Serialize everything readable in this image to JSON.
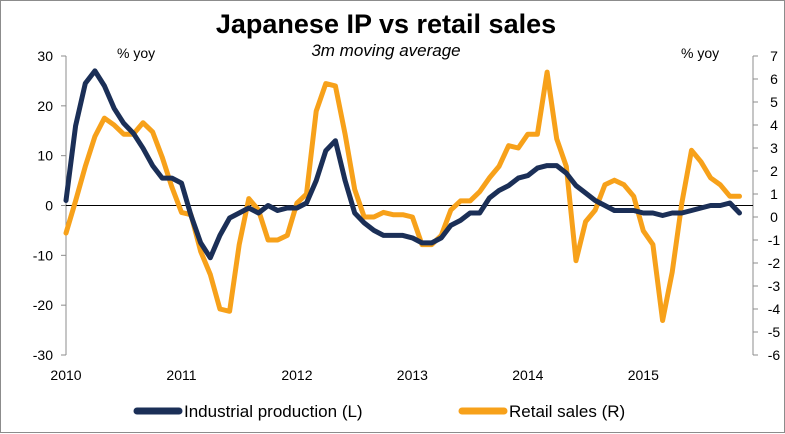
{
  "chart_data": {
    "type": "line",
    "title": "Japanese IP vs retail sales",
    "subtitle": "3m moving average",
    "y_left_unit": "% yoy",
    "y_right_unit": "% yoy",
    "y_left_lim": [
      -30,
      30
    ],
    "y_right_lim": [
      -6,
      7
    ],
    "y_left_ticks": [
      "30",
      "20",
      "10",
      "0",
      "-10",
      "-20",
      "-30"
    ],
    "y_right_ticks": [
      "7",
      "6",
      "5",
      "4",
      "3",
      "2",
      "1",
      "0",
      "-1",
      "-2",
      "-3",
      "-4",
      "-5",
      "-6"
    ],
    "x_ticks": [
      "2010",
      "2011",
      "2012",
      "2013",
      "2014",
      "2015"
    ],
    "x_lim": [
      2010.0,
      2015.95
    ],
    "grid": false,
    "legend": "bottom",
    "colors": {
      "ip": "#1b2f57",
      "retail": "#f7a11a"
    },
    "series": [
      {
        "name": "Industrial production (L)",
        "axis": "left",
        "color": "#1b2f57",
        "x": [
          2010.0,
          2010.083,
          2010.167,
          2010.25,
          2010.333,
          2010.417,
          2010.5,
          2010.583,
          2010.667,
          2010.75,
          2010.833,
          2010.917,
          2011.0,
          2011.083,
          2011.167,
          2011.25,
          2011.333,
          2011.417,
          2011.5,
          2011.583,
          2011.667,
          2011.75,
          2011.833,
          2011.917,
          2012.0,
          2012.083,
          2012.167,
          2012.25,
          2012.333,
          2012.417,
          2012.5,
          2012.583,
          2012.667,
          2012.75,
          2012.833,
          2012.917,
          2013.0,
          2013.083,
          2013.167,
          2013.25,
          2013.333,
          2013.417,
          2013.5,
          2013.583,
          2013.667,
          2013.75,
          2013.833,
          2013.917,
          2014.0,
          2014.083,
          2014.167,
          2014.25,
          2014.333,
          2014.417,
          2014.5,
          2014.583,
          2014.667,
          2014.75,
          2014.833,
          2014.917,
          2015.0,
          2015.083,
          2015.167,
          2015.25,
          2015.333,
          2015.417,
          2015.5,
          2015.583,
          2015.667,
          2015.75,
          2015.833
        ],
        "values": [
          1,
          16,
          24.5,
          27,
          24,
          19.5,
          16.5,
          14.5,
          11.5,
          8,
          5.5,
          5.5,
          4.5,
          -2,
          -7.5,
          -10.5,
          -6,
          -2.5,
          -1.5,
          -0.5,
          -1.5,
          0,
          -1,
          -0.5,
          -0.5,
          0.5,
          5,
          11,
          13,
          5,
          -1.5,
          -3.5,
          -5,
          -6,
          -6,
          -6,
          -6.5,
          -7.5,
          -7.5,
          -6.5,
          -4,
          -3,
          -1.5,
          -1.5,
          1.5,
          3,
          4,
          5.5,
          6,
          7.5,
          8,
          8,
          6.5,
          4,
          2.5,
          1,
          0,
          -1,
          -1,
          -1,
          -1.5,
          -1.5,
          -2,
          -1.5,
          -1.5,
          -1,
          -0.5,
          0,
          0,
          0.5,
          -1.5
        ]
      },
      {
        "name": "Retail sales (R)",
        "axis": "right",
        "color": "#f7a11a",
        "x": [
          2010.0,
          2010.083,
          2010.167,
          2010.25,
          2010.333,
          2010.417,
          2010.5,
          2010.583,
          2010.667,
          2010.75,
          2010.833,
          2010.917,
          2011.0,
          2011.083,
          2011.167,
          2011.25,
          2011.333,
          2011.417,
          2011.5,
          2011.583,
          2011.667,
          2011.75,
          2011.833,
          2011.917,
          2012.0,
          2012.083,
          2012.167,
          2012.25,
          2012.333,
          2012.417,
          2012.5,
          2012.583,
          2012.667,
          2012.75,
          2012.833,
          2012.917,
          2013.0,
          2013.083,
          2013.167,
          2013.25,
          2013.333,
          2013.417,
          2013.5,
          2013.583,
          2013.667,
          2013.75,
          2013.833,
          2013.917,
          2014.0,
          2014.083,
          2014.167,
          2014.25,
          2014.333,
          2014.417,
          2014.5,
          2014.583,
          2014.667,
          2014.75,
          2014.833,
          2014.917,
          2015.0,
          2015.083,
          2015.167,
          2015.25,
          2015.333,
          2015.417,
          2015.5,
          2015.583,
          2015.667,
          2015.75,
          2015.833
        ],
        "values": [
          -0.7,
          0.7,
          2.2,
          3.5,
          4.3,
          4.0,
          3.6,
          3.6,
          4.1,
          3.7,
          2.6,
          1.3,
          0.2,
          0.1,
          -1.5,
          -2.5,
          -4.0,
          -4.1,
          -1.2,
          0.8,
          0.3,
          -1.0,
          -1.0,
          -0.8,
          0.6,
          1.0,
          4.6,
          5.8,
          5.7,
          3.6,
          1.2,
          0.0,
          0.0,
          0.2,
          0.1,
          0.1,
          0.0,
          -1.2,
          -1.2,
          -0.8,
          0.3,
          0.7,
          0.7,
          1.1,
          1.7,
          2.2,
          3.1,
          3.0,
          3.6,
          3.6,
          6.3,
          3.4,
          2.2,
          -1.9,
          -0.2,
          0.3,
          1.4,
          1.6,
          1.4,
          0.9,
          -0.6,
          -1.2,
          -4.5,
          -2.4,
          0.6,
          2.9,
          2.4,
          1.7,
          1.4,
          0.9,
          0.9
        ]
      }
    ]
  }
}
